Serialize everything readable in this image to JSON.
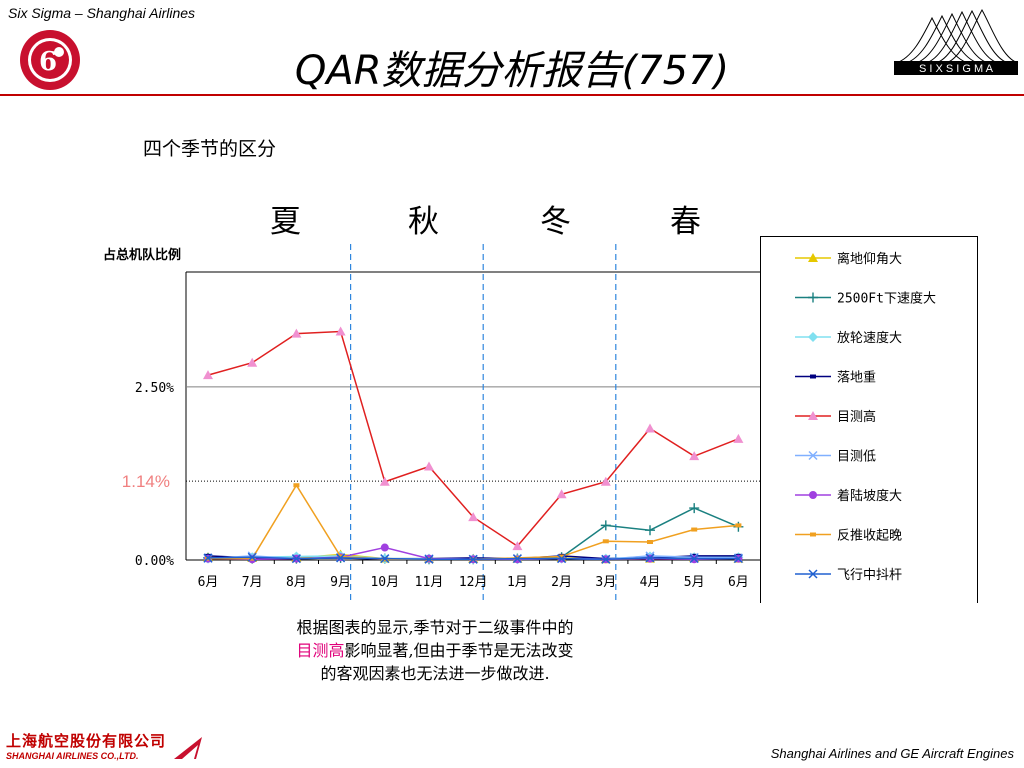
{
  "header": {
    "left_caption": "Six Sigma – Shanghai Airlines",
    "title": "QAR数据分析报告(757)",
    "six_sigma_logo": "S I X   S I G M A"
  },
  "subtitle": "四个季节的区分",
  "seasons": [
    "夏",
    "秋",
    "冬",
    "春"
  ],
  "conclusion": {
    "part1": "根据图表的显示,季节对于二级事件中的",
    "highlight": "目测高",
    "part2": "影响显著,但由于季节是无法改变的客观因素也无法进一步做改进."
  },
  "footer": {
    "company_cn": "上海航空股份有限公司",
    "company_en": "SHANGHAI AIRLINES CO.,LTD.",
    "right": "Shanghai Airlines and GE Aircraft Engines"
  },
  "chart_data": {
    "type": "line",
    "ylabel": "占总机队比例",
    "categories": [
      "6月",
      "7月",
      "8月",
      "9月",
      "10月",
      "11月",
      "12月",
      "1月",
      "2月",
      "3月",
      "4月",
      "5月",
      "6月"
    ],
    "ylim": [
      0,
      4.16
    ],
    "yticks": [
      {
        "value": 0,
        "label": "0.00%"
      },
      {
        "value": 2.5,
        "label": "2.50%"
      }
    ],
    "reference_line": {
      "value": 1.14,
      "label": "1.14%",
      "color": "#f08080"
    },
    "season_dividers_after": [
      "9月",
      "12月",
      "3月"
    ],
    "legend_placement": "right",
    "series": [
      {
        "name": "离地仰角大",
        "color": "#e6c800",
        "marker": "triangle",
        "values": [
          0.04,
          0.03,
          0.03,
          0.08,
          0.02,
          0.02,
          0.02,
          0.02,
          0.03,
          0.01,
          0.02,
          0.03,
          0.02
        ]
      },
      {
        "name": "2500Ft下速度大",
        "color": "#1a8080",
        "marker": "plus",
        "values": [
          0.03,
          0.02,
          0.02,
          0.03,
          0.02,
          0.01,
          0.01,
          0.02,
          0.04,
          0.5,
          0.43,
          0.75,
          0.48
        ]
      },
      {
        "name": "放轮速度大",
        "color": "#80e0f0",
        "marker": "diamond",
        "values": [
          0.02,
          0.04,
          0.05,
          0.06,
          0.02,
          0.02,
          0.01,
          0.01,
          0.02,
          0.02,
          0.05,
          0.04,
          0.04
        ]
      },
      {
        "name": "落地重",
        "color": "#000080",
        "marker": "dash",
        "values": [
          0.06,
          0.03,
          0.02,
          0.03,
          0.01,
          0.02,
          0.03,
          0.02,
          0.06,
          0.02,
          0.03,
          0.06,
          0.06
        ]
      },
      {
        "name": "目测高",
        "color": "#e02020",
        "marker": "triangle",
        "values": [
          2.67,
          2.85,
          3.27,
          3.3,
          1.13,
          1.35,
          0.62,
          0.2,
          0.95,
          1.13,
          1.9,
          1.5,
          1.75
        ]
      },
      {
        "name": "目测低",
        "color": "#80b0ff",
        "marker": "x",
        "values": [
          0.02,
          0.06,
          0.02,
          0.04,
          0.02,
          0.02,
          0.01,
          0.02,
          0.02,
          0.01,
          0.06,
          0.04,
          0.03
        ]
      },
      {
        "name": "着陆坡度大",
        "color": "#a040e0",
        "marker": "circle",
        "values": [
          0.02,
          0.01,
          0.02,
          0.04,
          0.18,
          0.02,
          0.01,
          0.01,
          0.02,
          0.01,
          0.02,
          0.01,
          0.02
        ]
      },
      {
        "name": "反推收起晚",
        "color": "#f0a020",
        "marker": "dash",
        "values": [
          0.02,
          0.02,
          1.08,
          0.05,
          0.01,
          0.01,
          0.01,
          0.03,
          0.05,
          0.27,
          0.26,
          0.44,
          0.5
        ]
      },
      {
        "name": "飞行中抖杆",
        "color": "#2060d0",
        "marker": "x",
        "values": [
          0.03,
          0.04,
          0.02,
          0.03,
          0.02,
          0.01,
          0.01,
          0.02,
          0.02,
          0.01,
          0.03,
          0.02,
          0.02
        ]
      }
    ]
  }
}
